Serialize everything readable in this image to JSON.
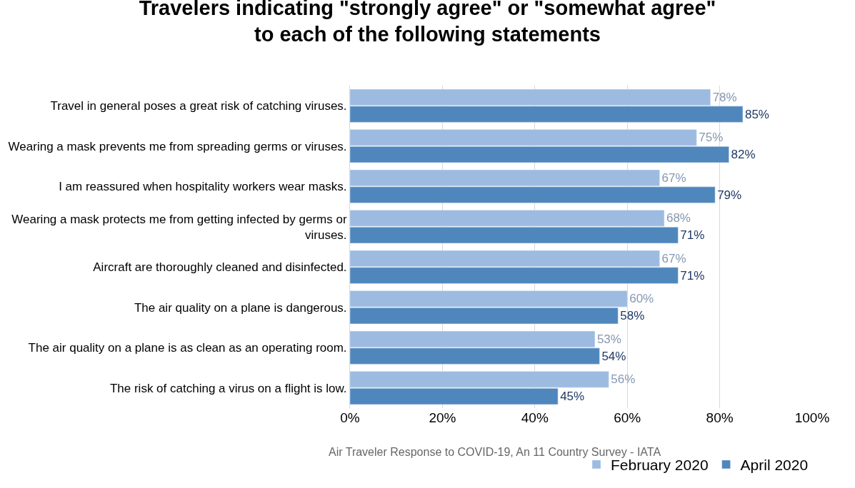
{
  "chart_data": {
    "type": "bar",
    "orientation": "horizontal",
    "title": "Travelers indicating \"strongly agree\" or \"somewhat agree\"\nto each of the following statements",
    "categories": [
      "Travel in general poses a great risk of catching viruses.",
      "Wearing a mask prevents me from spreading germs or viruses.",
      "I am reassured when hospitality workers wear masks.",
      "Wearing a mask protects me from getting infected by germs or viruses.",
      "Aircraft are thoroughly cleaned and disinfected.",
      "The air quality on a plane is dangerous.",
      "The air quality on a plane is as clean as an operating room.",
      "The risk of catching a virus on a flight is low."
    ],
    "series": [
      {
        "name": "February 2020",
        "color": "#9dbbe0",
        "values": [
          78,
          75,
          67,
          68,
          67,
          60,
          53,
          56
        ],
        "value_labels": [
          "78%",
          "75%",
          "67%",
          "68%",
          "67%",
          "60%",
          "53%",
          "56%"
        ]
      },
      {
        "name": "April 2020",
        "color": "#4f87bd",
        "values": [
          85,
          82,
          79,
          71,
          71,
          58,
          54,
          45
        ],
        "value_labels": [
          "85%",
          "82%",
          "79%",
          "71%",
          "71%",
          "58%",
          "54%",
          "45%"
        ]
      }
    ],
    "xlim": [
      0,
      100
    ],
    "xticks": [
      {
        "value": 0,
        "label": "0%"
      },
      {
        "value": 20,
        "label": "20%"
      },
      {
        "value": 40,
        "label": "40%"
      },
      {
        "value": 60,
        "label": "60%"
      },
      {
        "value": 80,
        "label": "80%"
      },
      {
        "value": 100,
        "label": "100%"
      }
    ],
    "grid": "x",
    "legend": "bottom right",
    "annotations": [
      "Air Traveler Response to COVID-19, An 11 Country Survey - IATA"
    ]
  }
}
